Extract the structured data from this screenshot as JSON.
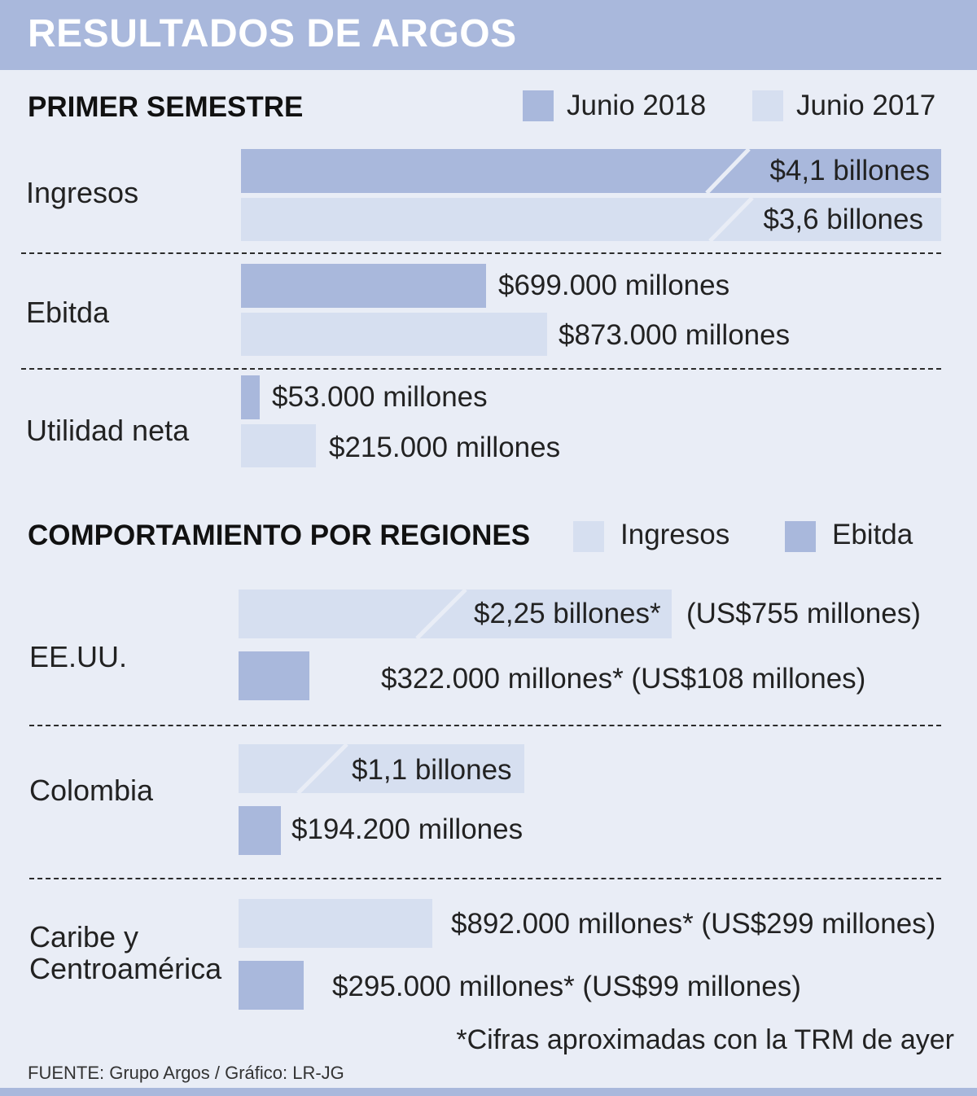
{
  "colors": {
    "junio_2018": "#a9b8dc",
    "junio_2017": "#d6dff0",
    "ingresos": "#d6dff0",
    "ebitda": "#a9b8dc",
    "background": "#e9edf6"
  },
  "title": "RESULTADOS DE ARGOS",
  "primer_semestre": {
    "heading": "PRIMER SEMESTRE",
    "legend": {
      "series_2018": "Junio 2018",
      "series_2017": "Junio 2017"
    },
    "categories": [
      "Ingresos",
      "Ebitda",
      "Utilidad neta"
    ],
    "labels": {
      "ingresos_2018": "$4,1 billones",
      "ingresos_2017": "$3,6 billones",
      "ebitda_2018": "$699.000 millones",
      "ebitda_2017": "$873.000 millones",
      "utilidad_2018": "$53.000 millones",
      "utilidad_2017": "$215.000 millones"
    }
  },
  "regiones": {
    "heading": "COMPORTAMIENTO POR REGIONES",
    "legend": {
      "ingresos": "Ingresos",
      "ebitda": "Ebitda"
    },
    "categories": {
      "eeuu": "EE.UU.",
      "colombia": "Colombia",
      "caribe_1": "Caribe y",
      "caribe_2": "Centroamérica"
    },
    "labels": {
      "eeuu_ingresos": "$2,25 billones*",
      "eeuu_ingresos_usd": "(US$755 millones)",
      "eeuu_ebitda": "$322.000 millones* (US$108 millones)",
      "colombia_ingresos": "$1,1 billones",
      "colombia_ebitda": "$194.200 millones",
      "caribe_ingresos": "$892.000 millones* (US$299 millones)",
      "caribe_ebitda": "$295.000 millones* (US$99 millones)"
    }
  },
  "footnote": "*Cifras aproximadas con la TRM de ayer",
  "source": "FUENTE: Grupo Argos / Gráfico: LR-JG",
  "chart_data": [
    {
      "type": "bar",
      "title": "PRIMER SEMESTRE",
      "categories": [
        "Ingresos",
        "Ebitda",
        "Utilidad neta"
      ],
      "series": [
        {
          "name": "Junio 2018",
          "values": [
            4100000,
            699000,
            53000
          ]
        },
        {
          "name": "Junio 2017",
          "values": [
            3600000,
            873000,
            215000
          ]
        }
      ]
    },
    {
      "type": "bar",
      "title": "COMPORTAMIENTO POR REGIONES",
      "categories": [
        "EE.UU.",
        "Colombia",
        "Caribe y Centroamérica"
      ],
      "series": [
        {
          "name": "Ingresos",
          "values": [
            2250000,
            1100000,
            892000
          ]
        },
        {
          "name": "Ebitda",
          "values": [
            322000,
            194200,
            295000
          ]
        }
      ]
    }
  ]
}
